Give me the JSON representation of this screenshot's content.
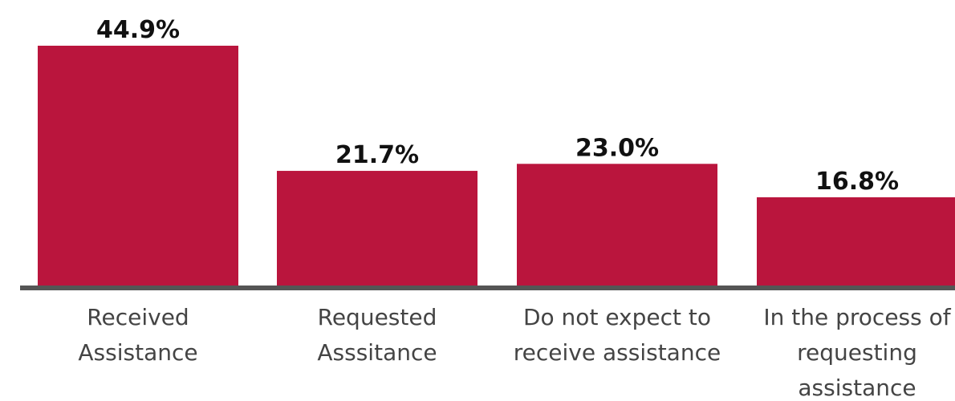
{
  "chart_data": {
    "type": "bar",
    "categories": [
      [
        "Received",
        "Assistance"
      ],
      [
        "Requested",
        "Asssitance"
      ],
      [
        "Do not expect to",
        "receive assistance"
      ],
      [
        "In the process of",
        "requesting",
        "assistance"
      ]
    ],
    "values": [
      44.9,
      21.7,
      23.0,
      16.8
    ],
    "value_labels": [
      "44.9%",
      "21.7%",
      "23.0%",
      "16.8%"
    ],
    "title": "",
    "xlabel": "",
    "ylabel": "",
    "ylim": [
      0,
      44.9
    ],
    "grid": false,
    "legend": "none",
    "colors": {
      "bar": "#BA153D",
      "axis": "#555555",
      "value_text": "#111111",
      "category_text": "#444444"
    }
  }
}
